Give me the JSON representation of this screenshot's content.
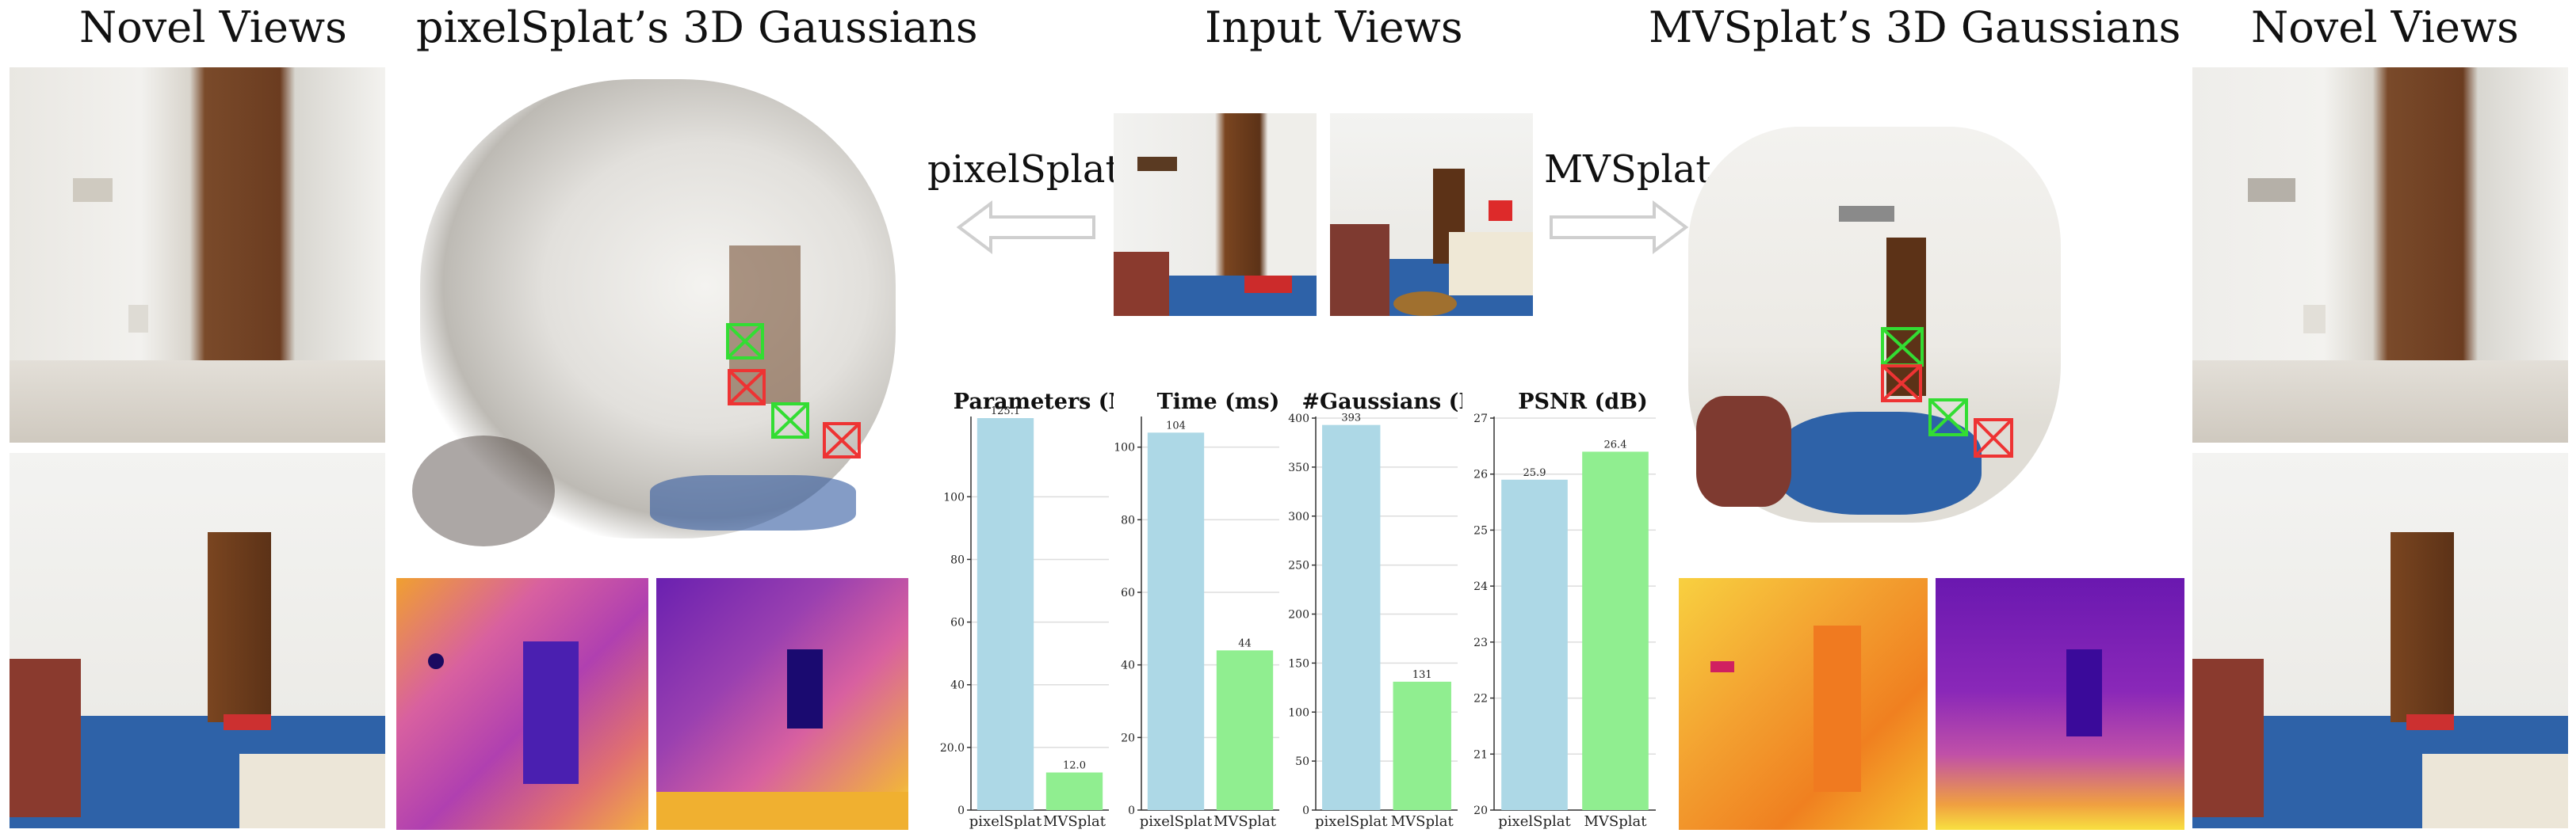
{
  "headings": {
    "novel_left": "Novel Views",
    "pixelsplat_gaussians": "pixelSplat’s 3D Gaussians",
    "input_views": "Input Views",
    "mvsplat_gaussians": "MVSplat’s 3D Gaussians",
    "novel_right": "Novel Views"
  },
  "arrows": {
    "left_label": "pixelSplat",
    "right_label": "MVSplat"
  },
  "colors": {
    "pixelsplat_bar": "#add8e6",
    "mvsplat_bar": "#90ee90",
    "frame_green": "#33dd33",
    "frame_red": "#ee3333"
  },
  "chart_data": [
    {
      "type": "bar",
      "title": "Parameters (M)",
      "categories": [
        "pixelSplat",
        "MVSplat"
      ],
      "values": [
        125.1,
        12.0
      ],
      "value_labels": [
        "125.1",
        "12.0"
      ],
      "ylim": [
        0,
        125.1
      ],
      "yticks": [
        0,
        20,
        40,
        60,
        80,
        100
      ],
      "ytick_labels": [
        "0",
        "20.0",
        "40",
        "60",
        "80",
        "100"
      ],
      "grid": true
    },
    {
      "type": "bar",
      "title": "Time (ms)",
      "categories": [
        "pixelSplat",
        "MVSplat"
      ],
      "values": [
        104,
        44
      ],
      "value_labels": [
        "104",
        "44"
      ],
      "ylim": [
        0,
        108
      ],
      "yticks": [
        0,
        20,
        40,
        60,
        80,
        100
      ],
      "ytick_labels": [
        "0",
        "20",
        "40",
        "60",
        "80",
        "100"
      ],
      "grid": true
    },
    {
      "type": "bar",
      "title": "#Gaussians (K)",
      "categories": [
        "pixelSplat",
        "MVSplat"
      ],
      "values": [
        393,
        131
      ],
      "value_labels": [
        "393",
        "131"
      ],
      "ylim": [
        0,
        400
      ],
      "yticks": [
        0,
        50,
        100,
        150,
        200,
        250,
        300,
        350,
        400
      ],
      "ytick_labels": [
        "0",
        "50",
        "100",
        "150",
        "200",
        "250",
        "300",
        "350",
        "400"
      ],
      "grid": true
    },
    {
      "type": "bar",
      "title": "PSNR (dB)",
      "categories": [
        "pixelSplat",
        "MVSplat"
      ],
      "values": [
        25.9,
        26.4
      ],
      "value_labels": [
        "25.9",
        "26.4"
      ],
      "ylim": [
        20,
        27
      ],
      "yticks": [
        20,
        21,
        22,
        23,
        24,
        25,
        26,
        27
      ],
      "ytick_labels": [
        "20",
        "21",
        "22",
        "23",
        "24",
        "25",
        "26",
        "27"
      ],
      "grid": true
    }
  ]
}
